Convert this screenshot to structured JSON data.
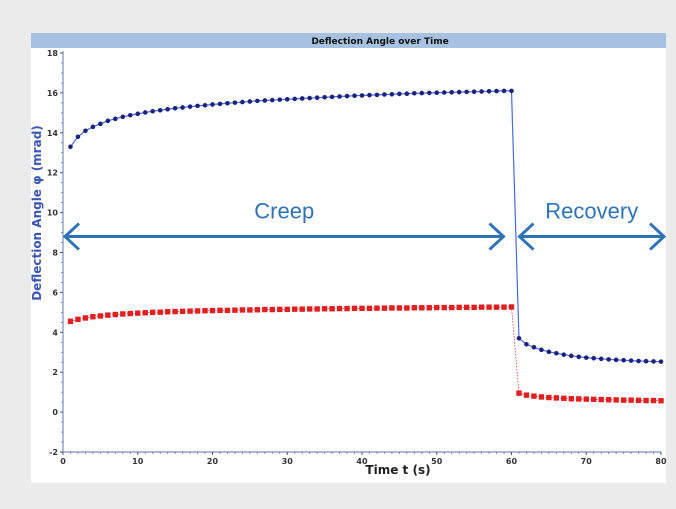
{
  "chart_data": {
    "type": "line",
    "title": "Deflection Angle over Time",
    "xlabel": "Time t (s)",
    "ylabel": "Deflection Angle φ (mrad)",
    "xlim": [
      0,
      80
    ],
    "ylim": [
      -2,
      18
    ],
    "x_ticks": [
      0,
      10,
      20,
      30,
      40,
      50,
      60,
      70,
      80
    ],
    "y_ticks": [
      -2,
      0,
      2,
      4,
      6,
      8,
      10,
      12,
      14,
      16,
      18
    ],
    "grid": false,
    "legend": "none",
    "series": [
      {
        "color": "#1a237e",
        "line_color": "#4a6cd4",
        "marker": "circle",
        "points": [
          [
            1,
            13.3
          ],
          [
            2,
            13.8
          ],
          [
            3,
            14.1
          ],
          [
            4,
            14.3
          ],
          [
            5,
            14.45
          ],
          [
            6,
            14.6
          ],
          [
            7,
            14.7
          ],
          [
            8,
            14.8
          ],
          [
            9,
            14.88
          ],
          [
            10,
            14.95
          ],
          [
            11,
            15.02
          ],
          [
            12,
            15.08
          ],
          [
            13,
            15.13
          ],
          [
            14,
            15.18
          ],
          [
            15,
            15.23
          ],
          [
            16,
            15.27
          ],
          [
            17,
            15.31
          ],
          [
            18,
            15.35
          ],
          [
            19,
            15.38
          ],
          [
            20,
            15.42
          ],
          [
            21,
            15.45
          ],
          [
            22,
            15.48
          ],
          [
            23,
            15.51
          ],
          [
            24,
            15.54
          ],
          [
            25,
            15.57
          ],
          [
            26,
            15.6
          ],
          [
            27,
            15.62
          ],
          [
            28,
            15.64
          ],
          [
            29,
            15.66
          ],
          [
            30,
            15.68
          ],
          [
            31,
            15.7
          ],
          [
            32,
            15.72
          ],
          [
            33,
            15.74
          ],
          [
            34,
            15.76
          ],
          [
            35,
            15.78
          ],
          [
            36,
            15.8
          ],
          [
            37,
            15.82
          ],
          [
            38,
            15.84
          ],
          [
            39,
            15.86
          ],
          [
            40,
            15.87
          ],
          [
            41,
            15.89
          ],
          [
            42,
            15.9
          ],
          [
            43,
            15.92
          ],
          [
            44,
            15.93
          ],
          [
            45,
            15.95
          ],
          [
            46,
            15.96
          ],
          [
            47,
            15.98
          ],
          [
            48,
            15.99
          ],
          [
            49,
            16.0
          ],
          [
            50,
            16.01
          ],
          [
            51,
            16.02
          ],
          [
            52,
            16.03
          ],
          [
            53,
            16.04
          ],
          [
            54,
            16.05
          ],
          [
            55,
            16.06
          ],
          [
            56,
            16.07
          ],
          [
            57,
            16.08
          ],
          [
            58,
            16.09
          ],
          [
            59,
            16.1
          ],
          [
            60,
            16.1
          ],
          [
            61,
            3.7
          ],
          [
            62,
            3.4
          ],
          [
            63,
            3.25
          ],
          [
            64,
            3.12
          ],
          [
            65,
            3.02
          ],
          [
            66,
            2.95
          ],
          [
            67,
            2.88
          ],
          [
            68,
            2.82
          ],
          [
            69,
            2.77
          ],
          [
            70,
            2.73
          ],
          [
            71,
            2.7
          ],
          [
            72,
            2.67
          ],
          [
            73,
            2.64
          ],
          [
            74,
            2.62
          ],
          [
            75,
            2.6
          ],
          [
            76,
            2.58
          ],
          [
            77,
            2.56
          ],
          [
            78,
            2.55
          ],
          [
            79,
            2.54
          ],
          [
            80,
            2.53
          ]
        ]
      },
      {
        "color": "#e02020",
        "line_color": "#e02020",
        "marker": "square",
        "points": [
          [
            1,
            4.55
          ],
          [
            2,
            4.65
          ],
          [
            3,
            4.72
          ],
          [
            4,
            4.78
          ],
          [
            5,
            4.82
          ],
          [
            6,
            4.86
          ],
          [
            7,
            4.89
          ],
          [
            8,
            4.92
          ],
          [
            9,
            4.94
          ],
          [
            10,
            4.96
          ],
          [
            11,
            4.98
          ],
          [
            12,
            5.0
          ],
          [
            13,
            5.01
          ],
          [
            14,
            5.03
          ],
          [
            15,
            5.04
          ],
          [
            16,
            5.05
          ],
          [
            17,
            5.06
          ],
          [
            18,
            5.07
          ],
          [
            19,
            5.08
          ],
          [
            20,
            5.09
          ],
          [
            21,
            5.1
          ],
          [
            22,
            5.1
          ],
          [
            23,
            5.11
          ],
          [
            24,
            5.12
          ],
          [
            25,
            5.12
          ],
          [
            26,
            5.13
          ],
          [
            27,
            5.14
          ],
          [
            28,
            5.14
          ],
          [
            29,
            5.15
          ],
          [
            30,
            5.15
          ],
          [
            31,
            5.16
          ],
          [
            32,
            5.16
          ],
          [
            33,
            5.17
          ],
          [
            34,
            5.17
          ],
          [
            35,
            5.18
          ],
          [
            36,
            5.18
          ],
          [
            37,
            5.19
          ],
          [
            38,
            5.19
          ],
          [
            39,
            5.2
          ],
          [
            40,
            5.2
          ],
          [
            41,
            5.2
          ],
          [
            42,
            5.21
          ],
          [
            43,
            5.21
          ],
          [
            44,
            5.22
          ],
          [
            45,
            5.22
          ],
          [
            46,
            5.22
          ],
          [
            47,
            5.23
          ],
          [
            48,
            5.23
          ],
          [
            49,
            5.23
          ],
          [
            50,
            5.24
          ],
          [
            51,
            5.24
          ],
          [
            52,
            5.24
          ],
          [
            53,
            5.25
          ],
          [
            54,
            5.25
          ],
          [
            55,
            5.25
          ],
          [
            56,
            5.26
          ],
          [
            57,
            5.26
          ],
          [
            58,
            5.26
          ],
          [
            59,
            5.26
          ],
          [
            60,
            5.27
          ],
          [
            61,
            0.95
          ],
          [
            62,
            0.85
          ],
          [
            63,
            0.8
          ],
          [
            64,
            0.76
          ],
          [
            65,
            0.73
          ],
          [
            66,
            0.71
          ],
          [
            67,
            0.69
          ],
          [
            68,
            0.67
          ],
          [
            69,
            0.66
          ],
          [
            70,
            0.65
          ],
          [
            71,
            0.64
          ],
          [
            72,
            0.63
          ],
          [
            73,
            0.62
          ],
          [
            74,
            0.61
          ],
          [
            75,
            0.6
          ],
          [
            76,
            0.6
          ],
          [
            77,
            0.59
          ],
          [
            78,
            0.58
          ],
          [
            79,
            0.58
          ],
          [
            80,
            0.57
          ]
        ]
      }
    ],
    "annotations": [
      {
        "text": "Creep",
        "x_range": [
          0,
          60
        ],
        "y": 8.8,
        "color": "#2e74b5"
      },
      {
        "text": "Recovery",
        "x_range": [
          60,
          80
        ],
        "y": 8.8,
        "color": "#2e74b5"
      }
    ]
  }
}
